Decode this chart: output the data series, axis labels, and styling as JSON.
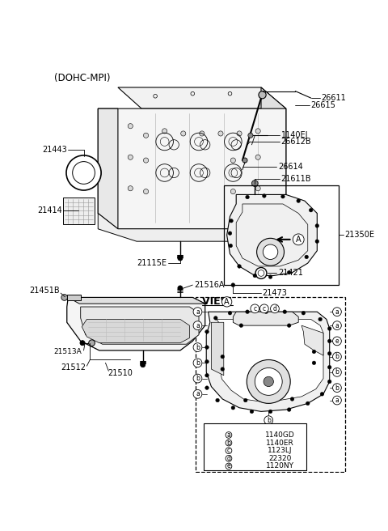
{
  "title": "(DOHC-MPI)",
  "bg": "#ffffff",
  "lc": "black",
  "lw": 0.7,
  "fs": 7.0,
  "symbols": [
    "a",
    "b",
    "c",
    "d",
    "e"
  ],
  "pncs": [
    "1140GD",
    "1140ER",
    "1123LJ",
    "22320",
    "1120NY"
  ],
  "part_ids": [
    "21443",
    "21414",
    "21115E",
    "26615",
    "26611",
    "1140EJ",
    "26612B",
    "26614",
    "21611B",
    "21350E",
    "21421",
    "21473",
    "21451B",
    "21513A",
    "21512",
    "21510",
    "21516A"
  ]
}
